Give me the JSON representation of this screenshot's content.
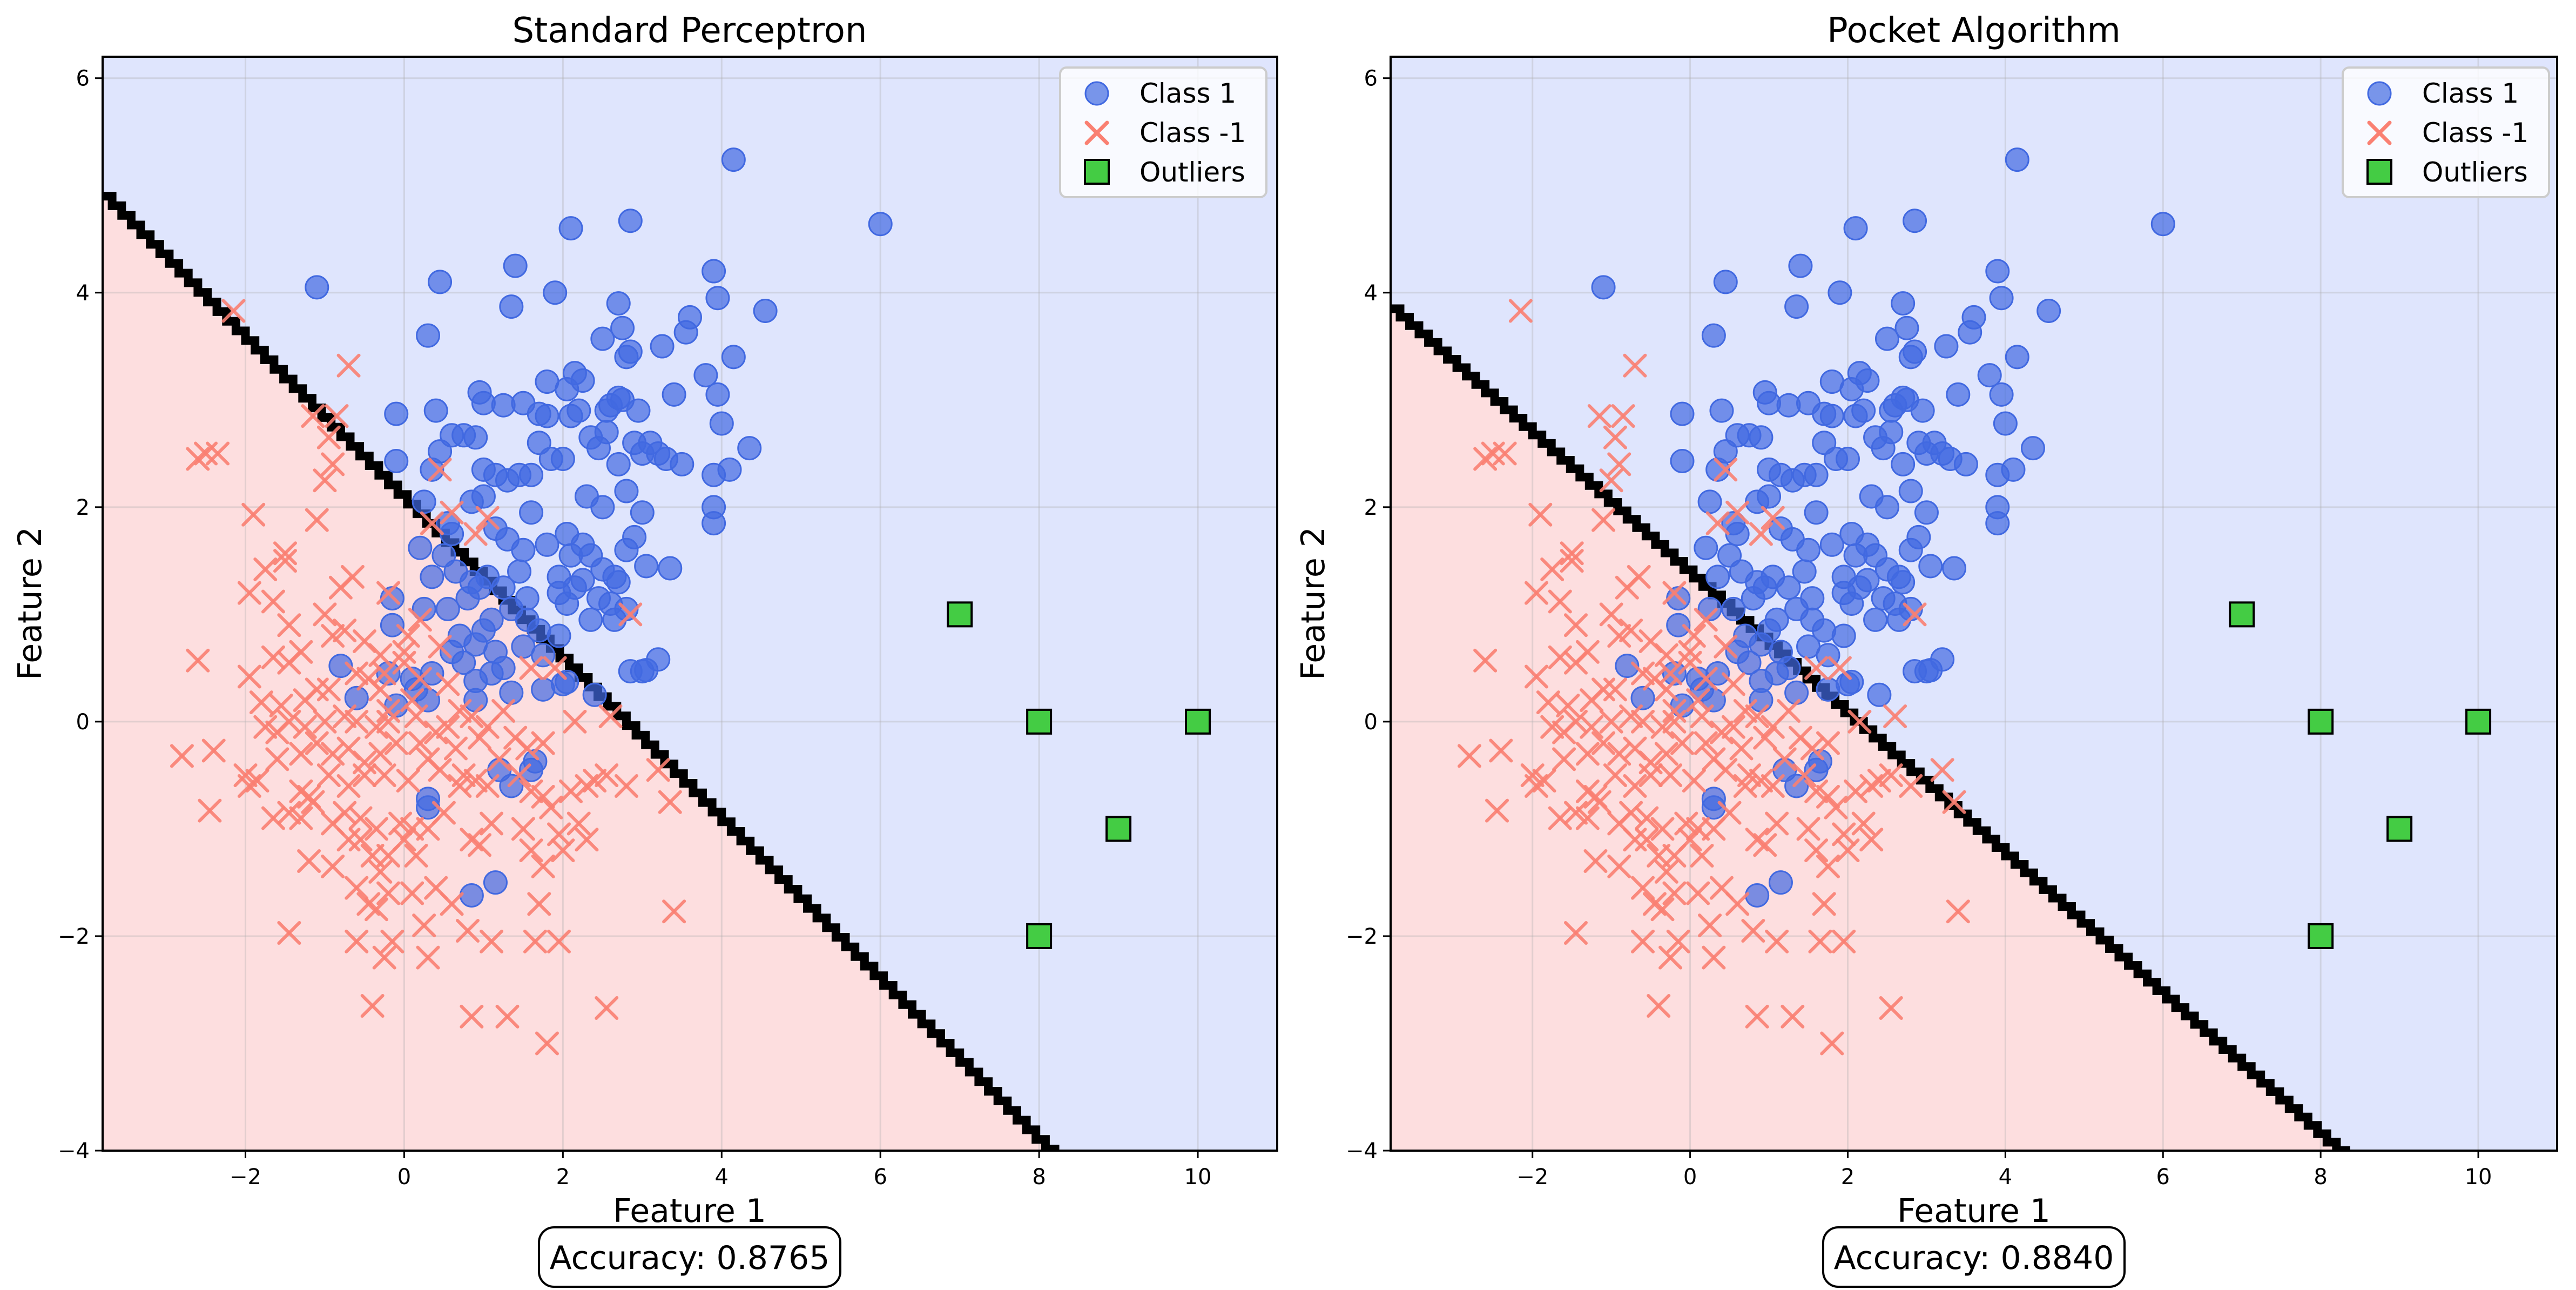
{
  "colors": {
    "class1": "#4169E1",
    "class_neg1": "#FA8072",
    "outliers": "#44CC44",
    "region_pos": "#DFE5FD",
    "region_neg": "#FDDEDF",
    "boundary": "#000000"
  },
  "legend": {
    "placement": "top-right",
    "class1": "Class 1",
    "class_neg1": "Class -1",
    "outliers": "Outliers"
  },
  "chart_data": [
    {
      "type": "scatter",
      "title": "Standard Perceptron",
      "xlabel": "Feature 1",
      "ylabel": "Feature 2",
      "xlim": [
        -3.8,
        11
      ],
      "ylim": [
        -4,
        6.2
      ],
      "xticks": [
        -2,
        0,
        2,
        4,
        6,
        8,
        10
      ],
      "yticks": [
        -4,
        -2,
        0,
        2,
        4,
        6
      ],
      "xtick_labels": [
        "−2",
        "0",
        "2",
        "4",
        "6",
        "8",
        "10"
      ],
      "ytick_labels": [
        "−4",
        "−2",
        "0",
        "2",
        "4",
        "6"
      ],
      "grid": true,
      "legend_placement": "top-right",
      "accuracy_text": "Accuracy: 0.8765",
      "decision_boundary": {
        "x": [
          -3.8,
          8.1
        ],
        "y": [
          4.9,
          -4.0
        ]
      }
    },
    {
      "type": "scatter",
      "title": "Pocket Algorithm",
      "xlabel": "Feature 1",
      "ylabel": "Feature 2",
      "xlim": [
        -3.8,
        11
      ],
      "ylim": [
        -4,
        6.2
      ],
      "xticks": [
        -2,
        0,
        2,
        4,
        6,
        8,
        10
      ],
      "yticks": [
        -4,
        -2,
        0,
        2,
        4,
        6
      ],
      "xtick_labels": [
        "−2",
        "0",
        "2",
        "4",
        "6",
        "8",
        "10"
      ],
      "ytick_labels": [
        "−4",
        "−2",
        "0",
        "2",
        "4",
        "6"
      ],
      "grid": true,
      "legend_placement": "top-right",
      "accuracy_text": "Accuracy: 0.8840",
      "decision_boundary": {
        "x": [
          -3.8,
          8.2
        ],
        "y": [
          3.85,
          -4.0
        ]
      }
    }
  ],
  "points": {
    "class1": [
      [
        -1.1,
        4.05
      ],
      [
        0.45,
        4.1
      ],
      [
        0.3,
        3.6
      ],
      [
        1.4,
        4.25
      ],
      [
        1.35,
        3.87
      ],
      [
        1.9,
        4.0
      ],
      [
        2.1,
        4.6
      ],
      [
        2.85,
        4.67
      ],
      [
        4.15,
        5.24
      ],
      [
        6.0,
        4.64
      ],
      [
        -0.1,
        2.87
      ],
      [
        0.4,
        2.9
      ],
      [
        0.95,
        3.07
      ],
      [
        1.0,
        2.97
      ],
      [
        1.25,
        2.95
      ],
      [
        1.5,
        2.97
      ],
      [
        1.7,
        2.87
      ],
      [
        1.8,
        3.17
      ],
      [
        2.05,
        3.1
      ],
      [
        2.15,
        3.25
      ],
      [
        2.25,
        3.18
      ],
      [
        2.5,
        3.57
      ],
      [
        2.7,
        3.9
      ],
      [
        2.75,
        3.67
      ],
      [
        2.8,
        3.4
      ],
      [
        2.85,
        3.45
      ],
      [
        2.7,
        3.02
      ],
      [
        3.25,
        3.5
      ],
      [
        3.4,
        3.05
      ],
      [
        3.55,
        3.63
      ],
      [
        3.6,
        3.77
      ],
      [
        3.8,
        3.23
      ],
      [
        3.9,
        4.2
      ],
      [
        3.95,
        3.95
      ],
      [
        4.55,
        3.83
      ],
      [
        3.95,
        3.05
      ],
      [
        4.0,
        2.78
      ],
      [
        4.15,
        3.4
      ],
      [
        4.35,
        2.55
      ],
      [
        4.1,
        2.35
      ],
      [
        3.9,
        2.3
      ],
      [
        3.9,
        1.85
      ],
      [
        3.9,
        2.0
      ],
      [
        -0.1,
        2.43
      ],
      [
        0.35,
        2.35
      ],
      [
        0.45,
        2.52
      ],
      [
        0.6,
        2.67
      ],
      [
        0.75,
        2.67
      ],
      [
        0.9,
        2.65
      ],
      [
        1.0,
        2.35
      ],
      [
        1.15,
        2.3
      ],
      [
        1.3,
        2.25
      ],
      [
        1.45,
        2.3
      ],
      [
        1.6,
        2.3
      ],
      [
        1.7,
        2.6
      ],
      [
        1.8,
        2.85
      ],
      [
        1.85,
        2.45
      ],
      [
        2.0,
        2.45
      ],
      [
        2.1,
        2.85
      ],
      [
        2.2,
        2.9
      ],
      [
        2.35,
        2.65
      ],
      [
        2.45,
        2.55
      ],
      [
        2.55,
        2.9
      ],
      [
        2.6,
        2.95
      ],
      [
        2.75,
        3.0
      ],
      [
        2.95,
        2.9
      ],
      [
        2.9,
        2.6
      ],
      [
        3.0,
        2.5
      ],
      [
        3.1,
        2.6
      ],
      [
        3.2,
        2.5
      ],
      [
        3.3,
        2.45
      ],
      [
        3.5,
        2.4
      ],
      [
        2.55,
        2.7
      ],
      [
        2.3,
        2.1
      ],
      [
        2.5,
        2.0
      ],
      [
        2.7,
        2.4
      ],
      [
        2.8,
        2.15
      ],
      [
        3.0,
        1.95
      ],
      [
        0.25,
        2.05
      ],
      [
        0.55,
        1.85
      ],
      [
        0.6,
        1.75
      ],
      [
        0.85,
        2.05
      ],
      [
        1.0,
        2.1
      ],
      [
        1.15,
        1.8
      ],
      [
        1.3,
        1.7
      ],
      [
        1.5,
        1.6
      ],
      [
        1.6,
        1.95
      ],
      [
        1.8,
        1.65
      ],
      [
        1.95,
        1.35
      ],
      [
        2.05,
        1.75
      ],
      [
        2.1,
        1.55
      ],
      [
        2.25,
        1.65
      ],
      [
        2.35,
        1.55
      ],
      [
        2.5,
        1.42
      ],
      [
        2.65,
        1.35
      ],
      [
        2.8,
        1.6
      ],
      [
        2.9,
        1.72
      ],
      [
        3.05,
        1.45
      ],
      [
        3.35,
        1.43
      ],
      [
        0.2,
        1.62
      ],
      [
        0.35,
        1.35
      ],
      [
        0.5,
        1.55
      ],
      [
        0.65,
        1.4
      ],
      [
        0.85,
        1.3
      ],
      [
        0.95,
        1.25
      ],
      [
        1.05,
        1.35
      ],
      [
        1.25,
        1.25
      ],
      [
        1.45,
        1.4
      ],
      [
        1.55,
        1.15
      ],
      [
        1.95,
        1.2
      ],
      [
        2.05,
        1.1
      ],
      [
        2.15,
        1.25
      ],
      [
        2.25,
        1.32
      ],
      [
        2.45,
        1.15
      ],
      [
        2.6,
        1.1
      ],
      [
        2.7,
        1.3
      ],
      [
        2.65,
        0.95
      ],
      [
        2.35,
        0.95
      ],
      [
        2.8,
        1.05
      ],
      [
        -0.15,
        1.15
      ],
      [
        -0.15,
        0.9
      ],
      [
        0.25,
        1.05
      ],
      [
        0.55,
        1.05
      ],
      [
        0.8,
        1.15
      ],
      [
        1.0,
        0.85
      ],
      [
        1.1,
        0.95
      ],
      [
        1.15,
        0.65
      ],
      [
        1.35,
        1.05
      ],
      [
        1.55,
        0.95
      ],
      [
        1.7,
        0.85
      ],
      [
        1.5,
        0.7
      ],
      [
        1.75,
        0.62
      ],
      [
        1.95,
        0.8
      ],
      [
        0.7,
        0.8
      ],
      [
        0.9,
        0.72
      ],
      [
        1.25,
        0.5
      ],
      [
        2.0,
        0.35
      ],
      [
        2.05,
        0.37
      ],
      [
        2.85,
        0.47
      ],
      [
        3.0,
        0.47
      ],
      [
        3.05,
        0.48
      ],
      [
        3.2,
        0.58
      ],
      [
        -0.8,
        0.52
      ],
      [
        -0.6,
        0.22
      ],
      [
        -0.2,
        0.45
      ],
      [
        0.1,
        0.4
      ],
      [
        0.15,
        0.3
      ],
      [
        0.35,
        0.45
      ],
      [
        0.6,
        0.65
      ],
      [
        0.75,
        0.55
      ],
      [
        0.9,
        0.38
      ],
      [
        1.1,
        0.45
      ],
      [
        0.9,
        0.2
      ],
      [
        1.35,
        0.27
      ],
      [
        -0.1,
        0.15
      ],
      [
        0.3,
        0.2
      ],
      [
        1.2,
        -0.45
      ],
      [
        1.35,
        -0.6
      ],
      [
        1.65,
        -0.37
      ],
      [
        1.6,
        -0.45
      ],
      [
        0.3,
        -0.72
      ],
      [
        0.3,
        -0.8
      ],
      [
        0.85,
        -1.62
      ],
      [
        1.15,
        -1.5
      ],
      [
        2.4,
        0.25
      ],
      [
        1.75,
        0.3
      ]
    ],
    "class_neg1": [
      [
        -2.15,
        3.83
      ],
      [
        -0.7,
        3.32
      ],
      [
        -0.85,
        2.85
      ],
      [
        -0.95,
        2.65
      ],
      [
        -2.5,
        2.5
      ],
      [
        -2.6,
        2.45
      ],
      [
        -2.35,
        2.5
      ],
      [
        -1.15,
        2.85
      ],
      [
        -0.9,
        2.4
      ],
      [
        -1.0,
        2.25
      ],
      [
        -1.1,
        1.88
      ],
      [
        -1.9,
        1.93
      ],
      [
        -1.75,
        1.42
      ],
      [
        -1.5,
        1.57
      ],
      [
        -1.5,
        1.5
      ],
      [
        -1.95,
        1.2
      ],
      [
        -1.65,
        1.12
      ],
      [
        -1.0,
        1.0
      ],
      [
        -0.8,
        1.25
      ],
      [
        -0.65,
        1.35
      ],
      [
        -0.2,
        1.2
      ],
      [
        -1.45,
        0.9
      ],
      [
        -1.65,
        0.6
      ],
      [
        -1.45,
        0.55
      ],
      [
        -1.3,
        0.65
      ],
      [
        -0.9,
        0.8
      ],
      [
        -0.75,
        0.85
      ],
      [
        -0.5,
        0.75
      ],
      [
        -0.3,
        0.62
      ],
      [
        -0.25,
        0.45
      ],
      [
        -2.6,
        0.57
      ],
      [
        -1.95,
        0.42
      ],
      [
        -1.8,
        0.18
      ],
      [
        -1.55,
        0.15
      ],
      [
        -1.25,
        0.2
      ],
      [
        -1.1,
        0.3
      ],
      [
        -0.95,
        0.3
      ],
      [
        -0.6,
        0.45
      ],
      [
        -0.45,
        0.4
      ],
      [
        -0.3,
        0.3
      ],
      [
        -0.2,
        0.1
      ],
      [
        -1.75,
        -0.05
      ],
      [
        -1.6,
        -0.1
      ],
      [
        -1.45,
        0.0
      ],
      [
        -1.25,
        -0.05
      ],
      [
        -1.0,
        0.0
      ],
      [
        -0.75,
        0.05
      ],
      [
        -0.6,
        0.0
      ],
      [
        -0.35,
        -0.05
      ],
      [
        -0.2,
        0.0
      ],
      [
        -2.8,
        -0.32
      ],
      [
        -2.4,
        -0.27
      ],
      [
        -2.0,
        -0.5
      ],
      [
        -1.85,
        -0.55
      ],
      [
        -1.6,
        -0.35
      ],
      [
        -1.3,
        -0.3
      ],
      [
        -1.1,
        -0.2
      ],
      [
        -0.9,
        -0.3
      ],
      [
        -0.7,
        -0.25
      ],
      [
        -0.5,
        -0.38
      ],
      [
        -0.3,
        -0.3
      ],
      [
        -0.1,
        -0.2
      ],
      [
        -1.95,
        -0.6
      ],
      [
        -1.3,
        -0.65
      ],
      [
        -1.15,
        -0.75
      ],
      [
        -0.95,
        -0.5
      ],
      [
        -0.7,
        -0.6
      ],
      [
        -0.5,
        -0.5
      ],
      [
        -0.25,
        -0.5
      ],
      [
        0.05,
        -0.55
      ],
      [
        -2.45,
        -0.83
      ],
      [
        -1.65,
        -0.9
      ],
      [
        -1.45,
        -0.85
      ],
      [
        -1.3,
        -0.9
      ],
      [
        -1.2,
        -0.7
      ],
      [
        -0.9,
        -0.95
      ],
      [
        -0.75,
        -0.85
      ],
      [
        -0.55,
        -0.9
      ],
      [
        -0.35,
        -1.0
      ],
      [
        -0.05,
        -0.95
      ],
      [
        -1.2,
        -1.3
      ],
      [
        -0.9,
        -1.35
      ],
      [
        -0.7,
        -1.1
      ],
      [
        -0.55,
        -1.1
      ],
      [
        -0.4,
        -1.25
      ],
      [
        -0.3,
        -1.4
      ],
      [
        -0.2,
        -1.25
      ],
      [
        0.0,
        -1.1
      ],
      [
        0.15,
        -1.25
      ],
      [
        -0.6,
        -1.55
      ],
      [
        -0.45,
        -1.7
      ],
      [
        -0.35,
        -1.75
      ],
      [
        -0.2,
        -1.6
      ],
      [
        0.1,
        -1.6
      ],
      [
        0.4,
        -1.55
      ],
      [
        0.6,
        -1.7
      ],
      [
        0.25,
        -1.9
      ],
      [
        -1.45,
        -1.97
      ],
      [
        -0.6,
        -2.05
      ],
      [
        -0.25,
        -2.2
      ],
      [
        -0.15,
        -2.05
      ],
      [
        0.3,
        -2.2
      ],
      [
        0.8,
        -1.95
      ],
      [
        1.1,
        -2.05
      ],
      [
        1.65,
        -2.05
      ],
      [
        1.95,
        -2.05
      ],
      [
        0.85,
        -2.75
      ],
      [
        1.3,
        -2.75
      ],
      [
        -0.4,
        -2.65
      ],
      [
        1.8,
        -3.0
      ],
      [
        2.55,
        -2.67
      ],
      [
        3.4,
        -1.77
      ],
      [
        0.0,
        0.55
      ],
      [
        0.05,
        0.8
      ],
      [
        0.2,
        0.95
      ],
      [
        0.45,
        0.7
      ],
      [
        0.55,
        0.35
      ],
      [
        0.1,
        0.2
      ],
      [
        0.15,
        0.05
      ],
      [
        0.2,
        -0.2
      ],
      [
        0.4,
        -0.1
      ],
      [
        0.55,
        -0.05
      ],
      [
        0.7,
        0.1
      ],
      [
        0.85,
        0.05
      ],
      [
        0.95,
        -0.15
      ],
      [
        1.05,
        -0.05
      ],
      [
        1.25,
        0.1
      ],
      [
        1.4,
        -0.15
      ],
      [
        1.55,
        -0.25
      ],
      [
        1.75,
        -0.2
      ],
      [
        0.3,
        -0.35
      ],
      [
        0.45,
        -0.45
      ],
      [
        0.65,
        -0.25
      ],
      [
        0.75,
        -0.5
      ],
      [
        0.7,
        -0.6
      ],
      [
        0.9,
        -0.55
      ],
      [
        1.05,
        -0.6
      ],
      [
        1.2,
        -0.35
      ],
      [
        1.45,
        -0.5
      ],
      [
        1.6,
        -0.65
      ],
      [
        1.75,
        -0.7
      ],
      [
        1.85,
        -0.8
      ],
      [
        2.1,
        -0.65
      ],
      [
        2.2,
        -0.95
      ],
      [
        2.3,
        -0.6
      ],
      [
        2.4,
        -0.55
      ],
      [
        2.55,
        -0.5
      ],
      [
        2.8,
        -0.6
      ],
      [
        3.2,
        -0.45
      ],
      [
        3.35,
        -0.75
      ],
      [
        0.3,
        -1.0
      ],
      [
        0.5,
        -0.85
      ],
      [
        0.85,
        -1.1
      ],
      [
        0.95,
        -1.15
      ],
      [
        1.1,
        -0.95
      ],
      [
        1.5,
        -1.0
      ],
      [
        1.6,
        -1.2
      ],
      [
        1.75,
        -1.35
      ],
      [
        1.7,
        -1.7
      ],
      [
        1.95,
        -1.05
      ],
      [
        2.0,
        -1.2
      ],
      [
        2.3,
        -1.1
      ],
      [
        0.1,
        -1.0
      ],
      [
        0.2,
        0.4
      ],
      [
        0.0,
        0.65
      ],
      [
        0.6,
        1.95
      ],
      [
        1.05,
        1.9
      ],
      [
        0.45,
        2.35
      ],
      [
        0.35,
        1.85
      ],
      [
        0.9,
        1.75
      ],
      [
        1.9,
        0.5
      ],
      [
        2.6,
        0.05
      ],
      [
        2.85,
        1.0
      ],
      [
        2.15,
        0.0
      ],
      [
        1.6,
        0.5
      ]
    ],
    "outliers": [
      [
        7,
        1
      ],
      [
        8,
        0
      ],
      [
        10,
        0
      ],
      [
        9,
        -1
      ],
      [
        8,
        -2
      ]
    ]
  }
}
